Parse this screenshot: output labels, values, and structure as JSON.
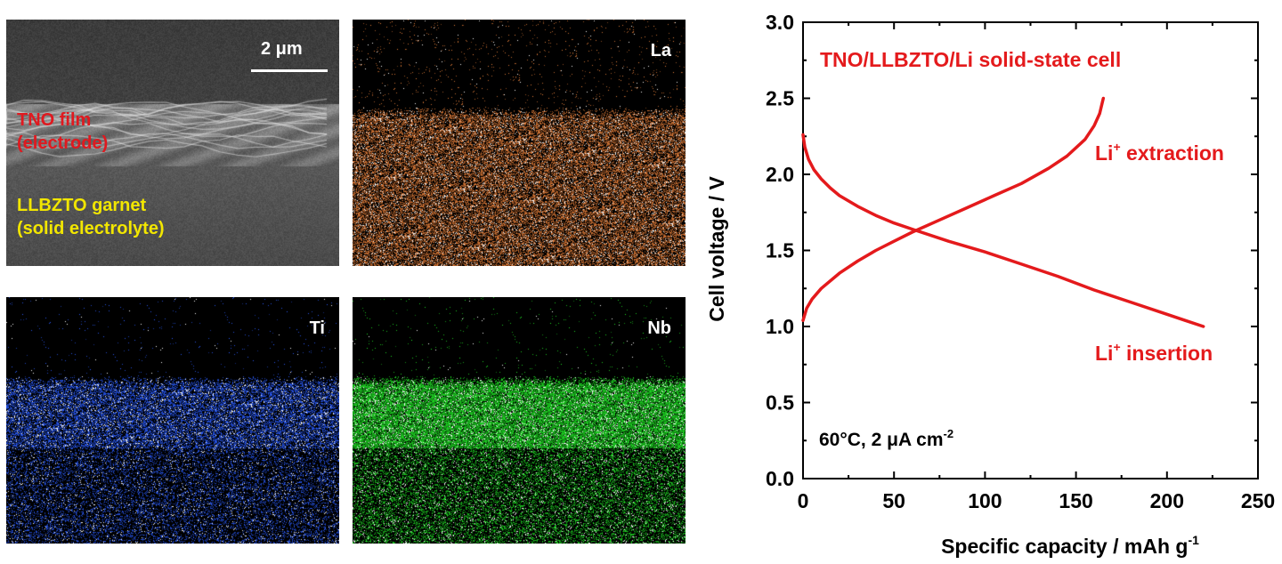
{
  "panels": {
    "sem": {
      "scale_label": "2 μm",
      "tno_line1": "TNO film",
      "tno_line2": "(electrode)",
      "llbzto_line1": "LLBZTO garnet",
      "llbzto_line2": "(solid electrolyte)"
    },
    "la": {
      "label": "La",
      "color": "#e8803a"
    },
    "ti": {
      "label": "Ti",
      "color": "#2a5cff"
    },
    "nb": {
      "label": "Nb",
      "color": "#1fe024"
    }
  },
  "colors": {
    "curve": "#e41a1c",
    "text_red": "#e41a1c",
    "axis": "#000000"
  },
  "chart_data": {
    "type": "line",
    "title": "TNO/LLBZTO/Li solid-state cell",
    "xlabel": "Specific capacity / mAh g",
    "xlabel_sup": "-1",
    "ylabel": "Cell voltage / V",
    "xlim": [
      0,
      250
    ],
    "ylim": [
      0,
      3.0
    ],
    "xticks": [
      "0",
      "50",
      "100",
      "150",
      "200",
      "250"
    ],
    "yticks": [
      "0.0",
      "0.5",
      "1.0",
      "1.5",
      "2.0",
      "2.5",
      "3.0"
    ],
    "condition_text": "60°C, 2 μA cm",
    "condition_sup": "-2",
    "series": [
      {
        "name": "Li+ extraction",
        "label_main": "Li",
        "label_sup": "+",
        "label_rest": " extraction",
        "x": [
          0,
          2,
          5,
          10,
          20,
          30,
          40,
          50,
          60,
          75,
          90,
          105,
          120,
          135,
          145,
          155,
          160,
          163,
          165
        ],
        "y": [
          1.04,
          1.12,
          1.18,
          1.25,
          1.35,
          1.43,
          1.5,
          1.56,
          1.62,
          1.7,
          1.78,
          1.86,
          1.94,
          2.04,
          2.12,
          2.23,
          2.32,
          2.4,
          2.5
        ]
      },
      {
        "name": "Li+ insertion",
        "label_main": "Li",
        "label_sup": "+",
        "label_rest": " insertion",
        "x": [
          0,
          1,
          3,
          6,
          10,
          15,
          20,
          30,
          40,
          50,
          60,
          80,
          100,
          120,
          140,
          160,
          180,
          200,
          210,
          220
        ],
        "y": [
          2.26,
          2.18,
          2.1,
          2.03,
          1.97,
          1.91,
          1.86,
          1.79,
          1.73,
          1.68,
          1.64,
          1.56,
          1.49,
          1.41,
          1.33,
          1.24,
          1.16,
          1.08,
          1.04,
          1.0
        ]
      }
    ]
  }
}
